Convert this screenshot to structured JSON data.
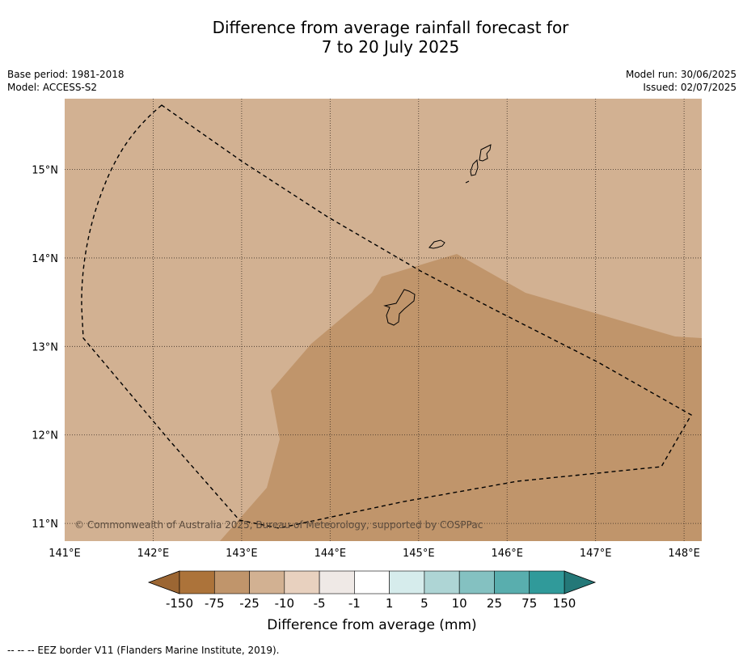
{
  "title": {
    "line1": "Difference from average rainfall forecast for",
    "line2": "7 to 20 July 2025"
  },
  "meta_left": {
    "base_period": "Base period: 1981-2018",
    "model": "Model: ACCESS-S2"
  },
  "meta_right": {
    "model_run": "Model run: 30/06/2025",
    "issued": "Issued: 02/07/2025"
  },
  "map": {
    "lon_range": [
      141.0,
      148.2
    ],
    "lat_range": [
      10.8,
      15.8
    ],
    "lon_ticks": [
      "141°E",
      "142°E",
      "143°E",
      "144°E",
      "145°E",
      "146°E",
      "147°E",
      "148°E"
    ],
    "lat_ticks": [
      "15°N",
      "14°N",
      "13°N",
      "12°N",
      "11°N"
    ],
    "background_color": "#d2b192",
    "anomaly_color": "#c0956b",
    "copyright": "© Commonwealth of Australia 2025, Bureau of Meteorology, supported by COSPPac"
  },
  "colorbar": {
    "title": "Difference from average (mm)",
    "labels": [
      "-150",
      "-75",
      "-25",
      "-10",
      "-5",
      "-1",
      "1",
      "5",
      "10",
      "25",
      "75",
      "150"
    ],
    "colors": [
      "#ac733a",
      "#c0956b",
      "#d2b192",
      "#e8d1bf",
      "#efe9e6",
      "#ffffff",
      "#d6ecec",
      "#aed5d5",
      "#84c1c1",
      "#59aeae",
      "#309a9a"
    ],
    "under_color": "#9c6633",
    "over_color": "#247878"
  },
  "footnote": "--  --  -- EEZ border V11 (Flanders Marine Institute, 2019)."
}
